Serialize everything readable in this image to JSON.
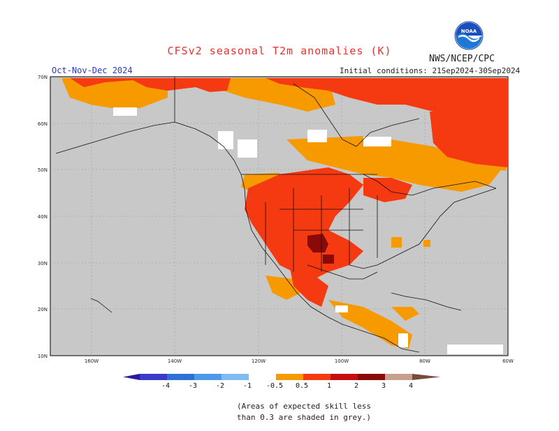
{
  "header": {
    "title": "CFSv2 seasonal T2m anomalies (K)",
    "period": "Oct-Nov-Dec 2024",
    "agency": "NWS/NCEP/CPC",
    "initial_conditions": "Initial conditions: 21Sep2024-30Sep2024",
    "logo_text": "NOAA"
  },
  "axes": {
    "lat_labels": [
      "70N",
      "60N",
      "50N",
      "40N",
      "30N",
      "20N",
      "10N"
    ],
    "lon_labels": [
      "160W",
      "140W",
      "120W",
      "100W",
      "80W",
      "60W"
    ]
  },
  "colorbar": {
    "ticks": [
      "-4",
      "-3",
      "-2",
      "-1",
      "-0.5",
      "0.5",
      "1",
      "2",
      "3",
      "4"
    ],
    "colors": [
      "#2a1aa0",
      "#3a3cc8",
      "#2f6fd8",
      "#4d9ae8",
      "#7fbcf2",
      "#ffffff",
      "#f79a00",
      "#f53a12",
      "#c41010",
      "#8a0a0a",
      "#c8a090",
      "#7a4a3a"
    ]
  },
  "legend_colors": {
    "land_grey": "#c8c8c8",
    "ocean_grey": "#c8c8c8",
    "orange": "#f79a00",
    "red": "#f53a12",
    "darkred": "#8a0a0a"
  },
  "footnote": {
    "line1": "(Areas of expected skill less",
    "line2": "than 0.3 are shaded in grey.)"
  }
}
